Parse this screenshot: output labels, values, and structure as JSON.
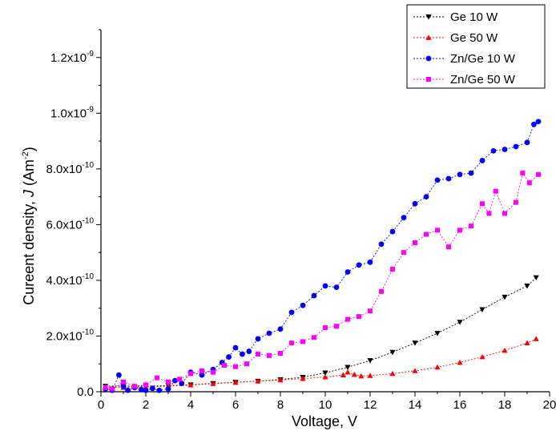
{
  "chart_data": {
    "type": "line",
    "xlabel": "Voltage, V",
    "ylabel_main": "Cureent density, ",
    "ylabel_var": "J",
    "ylabel_unit_pre": " (Am",
    "ylabel_unit_sup": "-2",
    "ylabel_unit_post": ")",
    "xlim": [
      0,
      20
    ],
    "ylim": [
      0,
      1.3e-09
    ],
    "legend_position": "top-right",
    "grid": false,
    "x_ticks": [
      {
        "v": 0,
        "label": "0"
      },
      {
        "v": 2,
        "label": "2"
      },
      {
        "v": 4,
        "label": "4"
      },
      {
        "v": 6,
        "label": "6"
      },
      {
        "v": 8,
        "label": "8"
      },
      {
        "v": 10,
        "label": "10"
      },
      {
        "v": 12,
        "label": "12"
      },
      {
        "v": 14,
        "label": "14"
      },
      {
        "v": 16,
        "label": "16"
      },
      {
        "v": 18,
        "label": "18"
      },
      {
        "v": 20,
        "label": "20"
      }
    ],
    "y_ticks": [
      {
        "v": 0,
        "mant": "0.0",
        "exp": ""
      },
      {
        "v": 2e-10,
        "mant": "2.0x10",
        "exp": "-10"
      },
      {
        "v": 4e-10,
        "mant": "4.0x10",
        "exp": "-10"
      },
      {
        "v": 6e-10,
        "mant": "6.0x10",
        "exp": "-10"
      },
      {
        "v": 8e-10,
        "mant": "8.0x10",
        "exp": "-10"
      },
      {
        "v": 1e-09,
        "mant": "1.0x10",
        "exp": "-9"
      },
      {
        "v": 1.2e-09,
        "mant": "1.2x10",
        "exp": "-9"
      }
    ],
    "series": [
      {
        "name": "Ge 10 W",
        "color": "#000000",
        "marker": "triangle-down",
        "points": [
          [
            0.2,
            2e-11
          ],
          [
            1.0,
            2e-11
          ],
          [
            2.0,
            2e-11
          ],
          [
            3.0,
            2.2e-11
          ],
          [
            4.0,
            2.5e-11
          ],
          [
            5.0,
            3e-11
          ],
          [
            6.0,
            3.4e-11
          ],
          [
            7.0,
            3.8e-11
          ],
          [
            8.0,
            4.4e-11
          ],
          [
            9.0,
            5.2e-11
          ],
          [
            10.0,
            6.8e-11
          ],
          [
            11.0,
            8.8e-11
          ],
          [
            12.0,
            1.12e-10
          ],
          [
            13.0,
            1.42e-10
          ],
          [
            14.0,
            1.75e-10
          ],
          [
            15.0,
            2.1e-10
          ],
          [
            16.0,
            2.5e-10
          ],
          [
            17.0,
            2.95e-10
          ],
          [
            18.0,
            3.4e-10
          ],
          [
            19.0,
            3.8e-10
          ],
          [
            19.4,
            4.1e-10
          ]
        ]
      },
      {
        "name": "Ge 50 W",
        "color": "#ff0000",
        "marker": "triangle-up",
        "points": [
          [
            0.2,
            1.5e-11
          ],
          [
            1.0,
            1.5e-11
          ],
          [
            2.0,
            1.7e-11
          ],
          [
            3.0,
            2e-11
          ],
          [
            4.0,
            2.4e-11
          ],
          [
            5.0,
            2.9e-11
          ],
          [
            6.0,
            3.3e-11
          ],
          [
            7.0,
            3.8e-11
          ],
          [
            8.0,
            4.2e-11
          ],
          [
            9.0,
            4.7e-11
          ],
          [
            10.0,
            5.3e-11
          ],
          [
            10.8,
            6e-11
          ],
          [
            11.0,
            7e-11
          ],
          [
            11.3,
            6.2e-11
          ],
          [
            11.6,
            5.6e-11
          ],
          [
            12.0,
            5.8e-11
          ],
          [
            13.0,
            6.5e-11
          ],
          [
            14.0,
            7.5e-11
          ],
          [
            15.0,
            8.8e-11
          ],
          [
            16.0,
            1.05e-10
          ],
          [
            17.0,
            1.25e-10
          ],
          [
            18.0,
            1.48e-10
          ],
          [
            19.0,
            1.75e-10
          ],
          [
            19.4,
            1.9e-10
          ]
        ]
      },
      {
        "name": "Zn/Ge 10 W",
        "color": "#0000ff",
        "marker": "circle",
        "points": [
          [
            0.2,
            1e-11
          ],
          [
            0.5,
            5e-12
          ],
          [
            0.8,
            6e-11
          ],
          [
            1.0,
            2e-11
          ],
          [
            1.2,
            5e-12
          ],
          [
            1.5,
            1.5e-11
          ],
          [
            1.8,
            8e-12
          ],
          [
            2.0,
            5e-12
          ],
          [
            2.3,
            1.2e-11
          ],
          [
            2.6,
            5e-12
          ],
          [
            3.0,
            1e-11
          ],
          [
            3.3,
            4e-11
          ],
          [
            3.6,
            3e-11
          ],
          [
            4.0,
            7e-11
          ],
          [
            4.5,
            6e-11
          ],
          [
            5.0,
            8e-11
          ],
          [
            5.4,
            1.05e-10
          ],
          [
            5.7,
            1.25e-10
          ],
          [
            6.0,
            1.58e-10
          ],
          [
            6.3,
            1.35e-10
          ],
          [
            6.6,
            1.45e-10
          ],
          [
            7.0,
            1.9e-10
          ],
          [
            7.5,
            2.1e-10
          ],
          [
            8.0,
            2.25e-10
          ],
          [
            8.5,
            2.85e-10
          ],
          [
            9.0,
            3.1e-10
          ],
          [
            9.5,
            3.45e-10
          ],
          [
            10.0,
            3.8e-10
          ],
          [
            10.5,
            3.75e-10
          ],
          [
            11.0,
            4.3e-10
          ],
          [
            11.5,
            4.55e-10
          ],
          [
            12.0,
            4.65e-10
          ],
          [
            12.5,
            5.3e-10
          ],
          [
            13.0,
            5.75e-10
          ],
          [
            13.5,
            6.25e-10
          ],
          [
            14.0,
            6.75e-10
          ],
          [
            14.5,
            7e-10
          ],
          [
            15.0,
            7.6e-10
          ],
          [
            15.5,
            7.65e-10
          ],
          [
            16.0,
            7.8e-10
          ],
          [
            16.5,
            7.85e-10
          ],
          [
            17.0,
            8.3e-10
          ],
          [
            17.5,
            8.65e-10
          ],
          [
            18.0,
            8.7e-10
          ],
          [
            18.5,
            8.8e-10
          ],
          [
            19.0,
            8.95e-10
          ],
          [
            19.3,
            9.6e-10
          ],
          [
            19.5,
            9.7e-10
          ]
        ]
      },
      {
        "name": "Zn/Ge 50 W",
        "color": "#ff00ff",
        "marker": "square",
        "points": [
          [
            0.2,
            1.5e-11
          ],
          [
            0.5,
            1e-11
          ],
          [
            1.0,
            3.5e-11
          ],
          [
            1.5,
            2e-11
          ],
          [
            2.0,
            2.5e-11
          ],
          [
            2.5,
            5e-11
          ],
          [
            3.0,
            3.5e-11
          ],
          [
            3.5,
            4.5e-11
          ],
          [
            4.0,
            6.5e-11
          ],
          [
            4.5,
            7.5e-11
          ],
          [
            5.0,
            7e-11
          ],
          [
            5.5,
            9.5e-11
          ],
          [
            6.0,
            9e-11
          ],
          [
            6.5,
            1e-10
          ],
          [
            7.0,
            1.35e-10
          ],
          [
            7.5,
            1.3e-10
          ],
          [
            8.0,
            1.38e-10
          ],
          [
            8.5,
            1.75e-10
          ],
          [
            9.0,
            1.8e-10
          ],
          [
            9.5,
            1.95e-10
          ],
          [
            10.0,
            2.3e-10
          ],
          [
            10.5,
            2.35e-10
          ],
          [
            11.0,
            2.6e-10
          ],
          [
            11.5,
            2.7e-10
          ],
          [
            12.0,
            2.9e-10
          ],
          [
            12.5,
            3.6e-10
          ],
          [
            13.0,
            4.4e-10
          ],
          [
            13.5,
            5e-10
          ],
          [
            14.0,
            5.35e-10
          ],
          [
            14.5,
            5.65e-10
          ],
          [
            15.0,
            5.8e-10
          ],
          [
            15.5,
            5.2e-10
          ],
          [
            16.0,
            5.8e-10
          ],
          [
            16.5,
            5.95e-10
          ],
          [
            17.0,
            6.75e-10
          ],
          [
            17.3,
            6.4e-10
          ],
          [
            17.6,
            7.2e-10
          ],
          [
            18.0,
            6.4e-10
          ],
          [
            18.5,
            6.8e-10
          ],
          [
            18.8,
            7.85e-10
          ],
          [
            19.1,
            7.5e-10
          ],
          [
            19.5,
            7.8e-10
          ]
        ]
      }
    ]
  }
}
